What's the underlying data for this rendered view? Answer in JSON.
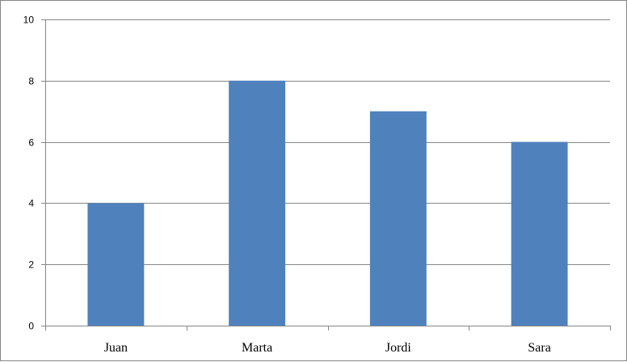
{
  "chart_data": {
    "type": "bar",
    "categories": [
      "Juan",
      "Marta",
      "Jordi",
      "Sara"
    ],
    "values": [
      4,
      8,
      7,
      6
    ],
    "ylim": [
      0,
      10
    ],
    "yticks": [
      0,
      2,
      4,
      6,
      8,
      10
    ],
    "grid": true,
    "legend": "none",
    "bar_color": "#4F81BD",
    "gridline_color": "#868686",
    "title": "",
    "xlabel": "",
    "ylabel": ""
  }
}
